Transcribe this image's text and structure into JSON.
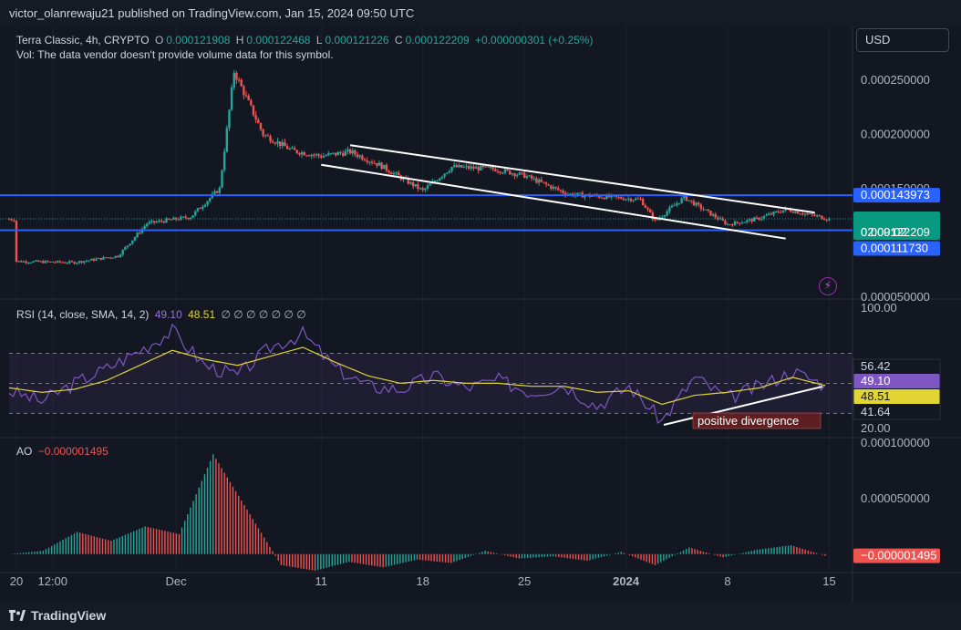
{
  "header": {
    "publisher_text": "victor_olanrewaju21 published on TradingView.com, Jan 15, 2024 09:50 UTC"
  },
  "legend": {
    "symbol": "Terra Classic, 4h, CRYPTO",
    "o_label": "O",
    "o_value": "0.000121908",
    "h_label": "H",
    "h_value": "0.000122468",
    "l_label": "L",
    "l_value": "0.000121226",
    "c_label": "C",
    "c_value": "0.000122209",
    "change": "+0.000000301 (+0.25%)",
    "vol_note": "Vol: The data vendor doesn't provide volume data for this symbol."
  },
  "currency_button": "USD",
  "rsi_legend": {
    "label": "RSI (14, close, SMA, 14, 2)",
    "rsi_value": "49.10",
    "sma_value": "48.51",
    "extras": "∅ ∅ ∅ ∅ ∅ ∅ ∅"
  },
  "ao_legend": {
    "label": "AO",
    "value": "−0.000001495"
  },
  "annotation": "positive divergence",
  "footer": {
    "brand": "TradingView"
  },
  "colors": {
    "up": "#26a69a",
    "down": "#ef5350",
    "level": "#2962ff",
    "rsi": "#7e57c2",
    "rsi_sma": "#e2d432",
    "background": "#131722"
  },
  "chart_data": [
    {
      "type": "candlestick",
      "title": "Terra Classic, 4h, CRYPTO",
      "x_ticks": [
        "20",
        "12:00",
        "Dec",
        "11",
        "18",
        "25",
        "2024",
        "8",
        "15"
      ],
      "y_ticks": [
        "0.000250000",
        "0.000200000",
        "0.000150000",
        "0.000050000"
      ],
      "ylim": [
        5e-05,
        0.00027
      ],
      "price_labels": {
        "resistance": "0.000143973",
        "last": "0.000122209",
        "countdown": "02:09:02",
        "support": "0.000111730"
      },
      "levels": [
        0.000143973,
        0.00011173
      ],
      "channel": {
        "upper": [
          [
            "Dec 13",
            0.00019
          ],
          [
            "Jan 14",
            0.000128
          ]
        ],
        "lower": [
          [
            "Dec 11",
            0.000172
          ],
          [
            "Jan 12",
            0.000104
          ]
        ]
      },
      "series": [
        {
          "dates": [
            "Nov 20",
            "Nov 24",
            "Nov 27",
            "Nov 29",
            "Dec 2",
            "Dec 4",
            "Dec 5",
            "Dec 7",
            "Dec 9",
            "Dec 11",
            "Dec 13",
            "Dec 15",
            "Dec 18",
            "Dec 20",
            "Dec 23",
            "Dec 25",
            "Dec 28",
            "Dec 31",
            "Jan 2",
            "Jan 3",
            "Jan 5",
            "Jan 8",
            "Jan 10",
            "Jan 12",
            "Jan 15"
          ],
          "close": [
            8.3e-05,
            8.2e-05,
            8.8e-05,
            0.000118,
            0.000124,
            0.00015,
            0.000258,
            0.0002,
            0.000185,
            0.00018,
            0.000184,
            0.000172,
            0.000148,
            0.00017,
            0.000168,
            0.000162,
            0.000145,
            0.000142,
            0.00014,
            0.00012,
            0.000142,
            0.000117,
            0.000122,
            0.000131,
            0.000122
          ]
        }
      ]
    },
    {
      "type": "line",
      "title": "RSI (14, close, SMA, 14, 2)",
      "y_ticks": [
        "100.00",
        "20.00"
      ],
      "ylim": [
        15,
        105
      ],
      "bands": [
        70,
        50,
        30
      ],
      "value_labels": [
        "56.42",
        "49.10",
        "48.51",
        "41.64"
      ],
      "series": [
        {
          "name": "RSI",
          "values": [
            45,
            38,
            50,
            60,
            72,
            85,
            62,
            55,
            74,
            83,
            60,
            48,
            46,
            55,
            47,
            52,
            44,
            49,
            35,
            48,
            25,
            54,
            40,
            48,
            58,
            49
          ]
        },
        {
          "name": "SMA",
          "values": [
            47,
            44,
            46,
            52,
            62,
            72,
            66,
            62,
            68,
            74,
            64,
            55,
            50,
            52,
            50,
            50,
            48,
            48,
            44,
            45,
            36,
            42,
            44,
            47,
            54,
            48.5
          ]
        }
      ]
    },
    {
      "type": "bar",
      "title": "AO",
      "y_ticks": [
        "0.000100000",
        "0.000050000"
      ],
      "ylim": [
        -1.5e-05,
        0.000105
      ],
      "value_label": "−0.000001495",
      "values": [
        0.0,
        3e-06,
        2e-05,
        1.2e-05,
        2.5e-05,
        1.8e-05,
        9e-05,
        4e-05,
        -1e-05,
        -1.5e-05,
        -7e-06,
        -1.2e-05,
        -5e-06,
        -8e-06,
        3e-06,
        -4e-06,
        -2e-06,
        -6e-06,
        2e-06,
        -1e-05,
        6e-06,
        -3e-06,
        4e-06,
        8e-06,
        -1.5e-06
      ]
    }
  ]
}
